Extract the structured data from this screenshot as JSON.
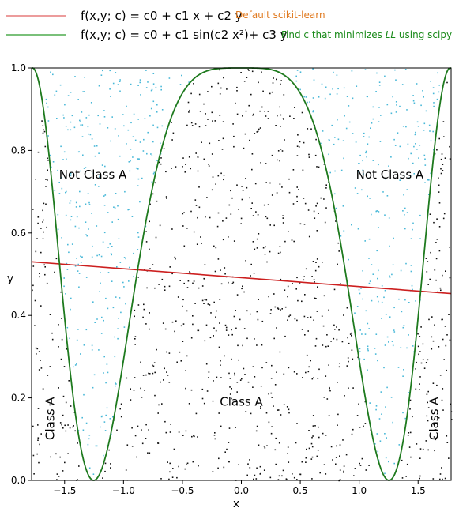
{
  "chart_data": {
    "type": "scatter",
    "xlabel": "x",
    "ylabel": "y",
    "xlim": [
      -1.78,
      1.78
    ],
    "ylim": [
      0.0,
      1.0
    ],
    "xticks": [
      -1.5,
      -1.0,
      -0.5,
      0.0,
      0.5,
      1.0,
      1.5
    ],
    "xtick_labels": [
      "−1.5",
      "−1.0",
      "−0.5",
      "0.0",
      "0.5",
      "1.0",
      "1.5"
    ],
    "yticks": [
      0.0,
      0.2,
      0.4,
      0.6,
      0.8,
      1.0
    ],
    "ytick_labels": [
      "0.0",
      "0.2",
      "0.4",
      "0.6",
      "0.8",
      "1.0"
    ],
    "grid": false,
    "legend": {
      "placement": "top, above plot",
      "entries": [
        {
          "formula": "f(x,y; c) = c0 + c1 x + c2 y",
          "note": "Default scikit-learn",
          "line_color": "#e06060",
          "note_color": "#e07a20"
        },
        {
          "formula": "f(x,y; c) = c0 + c1 sin(c2 x²)+ c3 y",
          "note_prefix": "Find c that minimizes ",
          "note_italic": "LL",
          "note_suffix": " using scipy",
          "line_color": "#2a9a2a",
          "note_color": "#1a8a1a"
        }
      ]
    },
    "series": [
      {
        "name": "Default scikit-learn",
        "kind": "line",
        "color": "#cc1f1f",
        "x": [
          -1.78,
          1.78
        ],
        "y": [
          0.53,
          0.453
        ]
      },
      {
        "name": "Find c that minimizes LL using scipy",
        "kind": "curve",
        "color": "#1e7a1e",
        "equation": "y = cos(x^2)^2 (i.e. 0.5 + 0.5 cos(2 x^2))",
        "x_range": [
          -1.78,
          1.78
        ]
      },
      {
        "name": "Class A",
        "kind": "points",
        "color": "#111111",
        "region": "y below the green curve",
        "approx_count": 1050
      },
      {
        "name": "Not Class A",
        "kind": "points",
        "color": "#49b8d8",
        "region": "y above the green curve",
        "approx_count": 600
      }
    ],
    "annotations": [
      {
        "text": "Not Class A",
        "x": -1.26,
        "y": 0.74,
        "rotation": 0
      },
      {
        "text": "Not Class A",
        "x": 1.26,
        "y": 0.74,
        "rotation": 0
      },
      {
        "text": "Class A",
        "x": 0.0,
        "y": 0.19,
        "rotation": 0
      },
      {
        "text": "Class A",
        "x": -1.62,
        "y": 0.15,
        "rotation": -90
      },
      {
        "text": "Class A",
        "x": 1.64,
        "y": 0.15,
        "rotation": -90
      }
    ]
  }
}
